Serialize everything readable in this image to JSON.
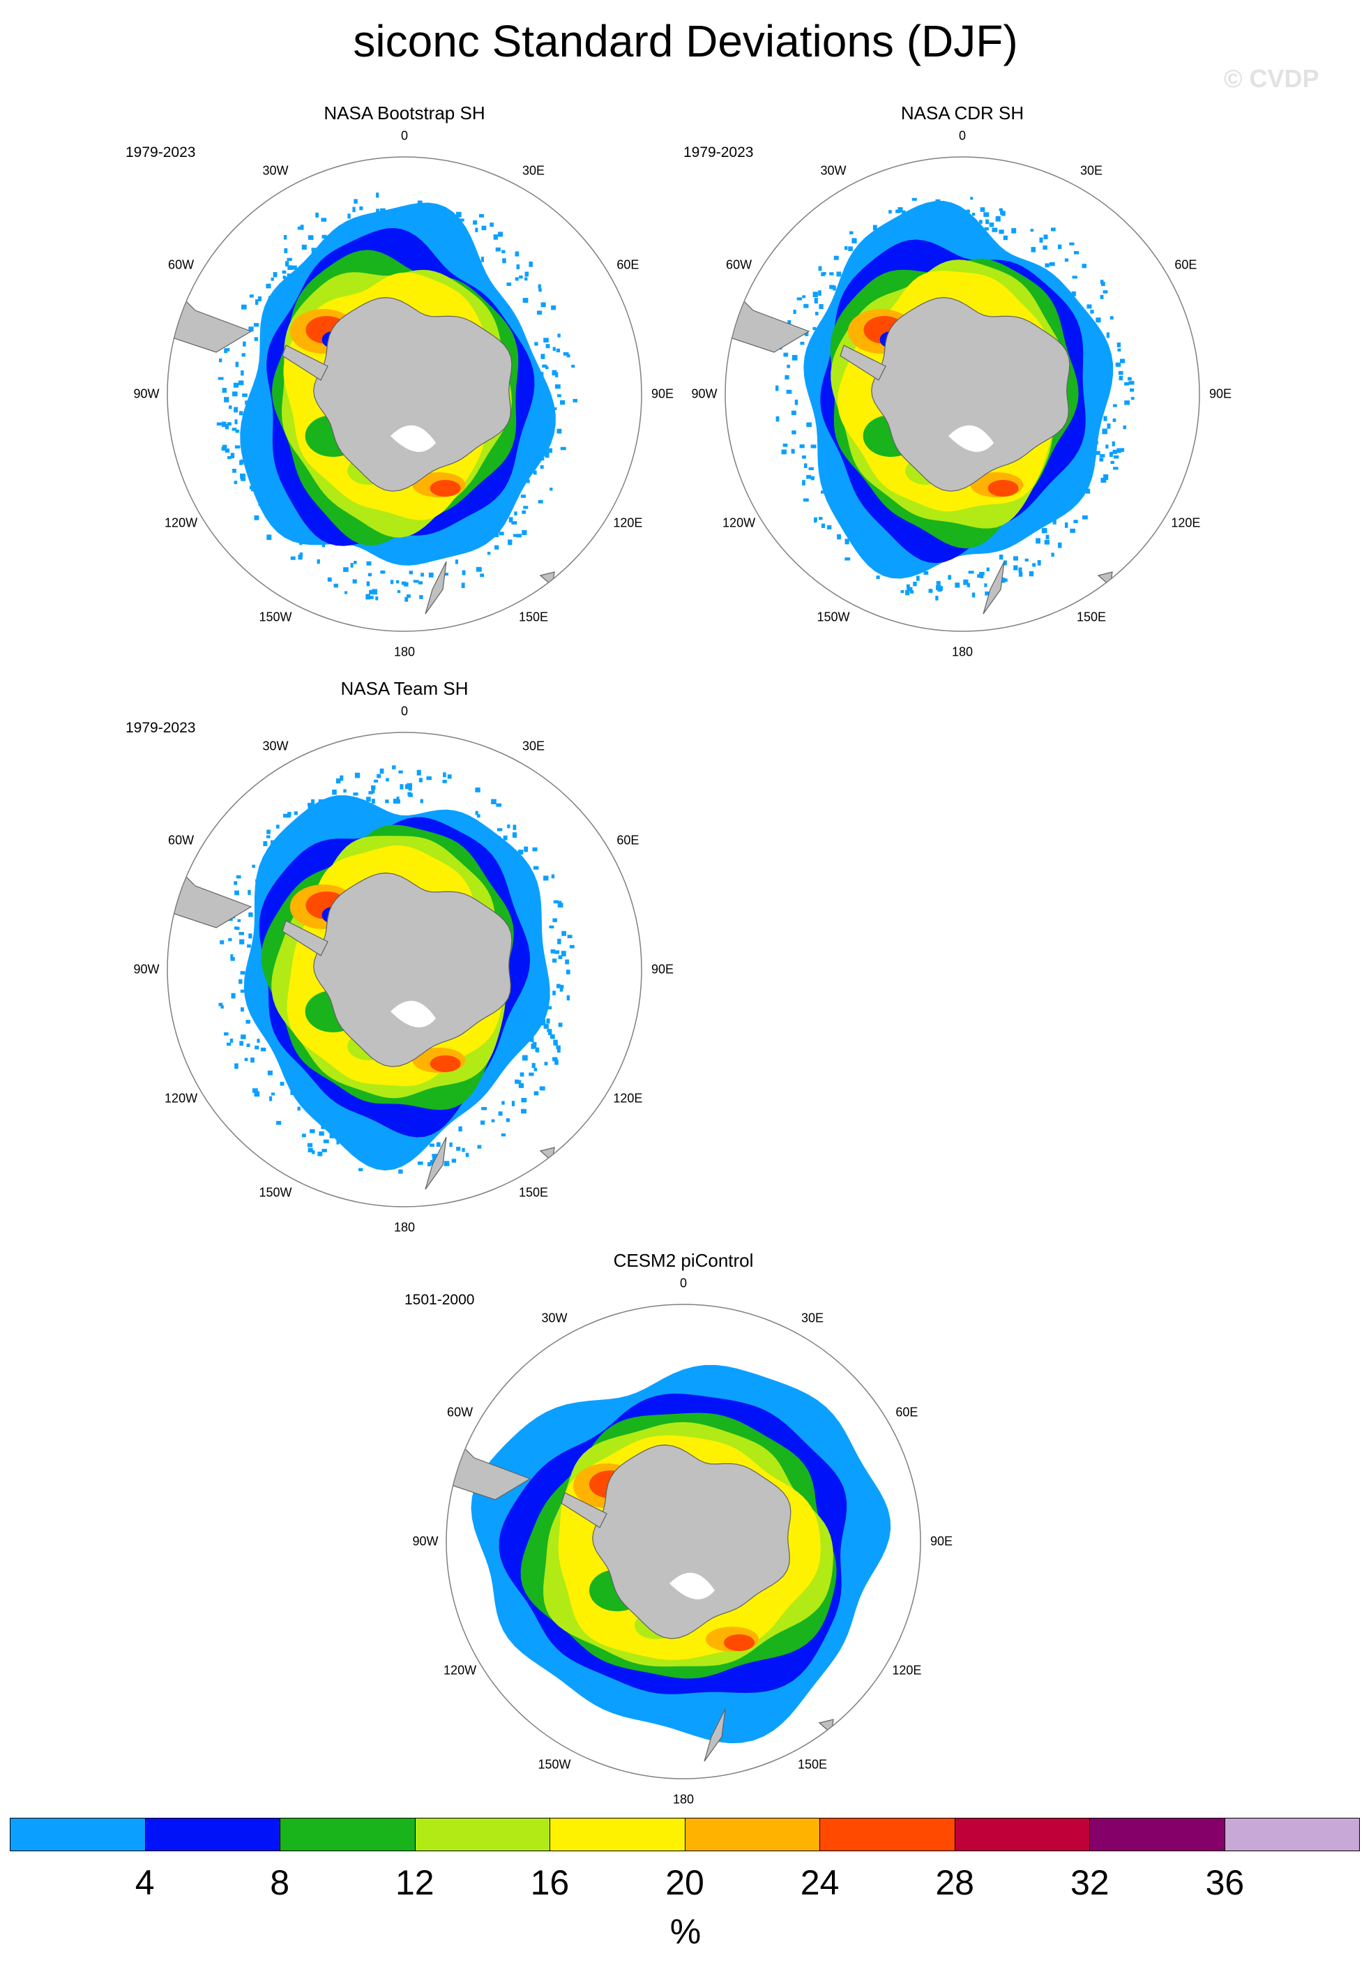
{
  "title": "siconc Standard Deviations (DJF)",
  "copyright": "© CVDP",
  "panels": [
    {
      "title": "NASA Bootstrap SH",
      "period": "1979-2023",
      "variant": 0
    },
    {
      "title": "NASA CDR SH",
      "period": "1979-2023",
      "variant": 1
    },
    {
      "title": "NASA Team SH",
      "period": "1979-2023",
      "variant": 2
    },
    {
      "title": "CESM2 piControl",
      "period": "1501-2000",
      "variant": 3
    }
  ],
  "longitude_labels": [
    "0",
    "30E",
    "60E",
    "90E",
    "120E",
    "150E",
    "180",
    "150W",
    "120W",
    "90W",
    "60W",
    "30W"
  ],
  "colorbar": {
    "colors": [
      "#0ba0ff",
      "#0013f8",
      "#19b31c",
      "#b2ea15",
      "#fff200",
      "#ffb300",
      "#ff4a00",
      "#c00038",
      "#860069",
      "#c8a8d6"
    ],
    "ticks": [
      "4",
      "8",
      "12",
      "16",
      "20",
      "24",
      "28",
      "32",
      "36"
    ],
    "units": "%"
  },
  "land_color": "#c0c0c0"
}
